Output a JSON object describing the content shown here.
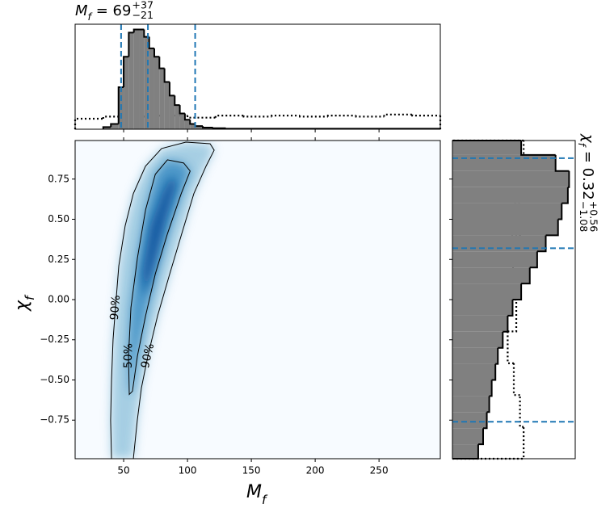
{
  "chart_data": [
    {
      "type": "histogram",
      "title": {
        "symbol": "M",
        "sub": "f",
        "text": " = 69",
        "plus": "+37",
        "minus": "−21"
      },
      "bins": [
        34,
        40,
        46,
        50,
        54,
        58,
        62,
        66,
        70,
        74,
        78,
        82,
        86,
        90,
        94,
        98,
        102,
        106,
        112,
        120,
        130,
        298
      ],
      "values": [
        0.02,
        0.05,
        0.4,
        0.69,
        0.92,
        0.95,
        0.95,
        0.88,
        0.77,
        0.69,
        0.58,
        0.45,
        0.32,
        0.23,
        0.15,
        0.09,
        0.05,
        0.03,
        0.015,
        0.01,
        0.005
      ],
      "color": "#808080",
      "prior_bins": [
        12,
        34,
        56,
        78,
        100,
        122,
        144,
        166,
        188,
        210,
        232,
        254,
        276,
        298
      ],
      "prior_values": [
        0.1,
        0.12,
        0.12,
        0.13,
        0.11,
        0.13,
        0.12,
        0.13,
        0.12,
        0.13,
        0.12,
        0.14,
        0.13
      ],
      "quantiles": [
        48,
        69,
        106
      ],
      "quantile_color": "#1f77b4",
      "xlim": [
        12,
        298
      ],
      "ylim": [
        0,
        1
      ],
      "xticks": [
        50,
        100,
        150,
        200,
        250
      ]
    },
    {
      "type": "contour",
      "xlabel": {
        "symbol": "M",
        "sub": "f"
      },
      "ylabel": {
        "symbol": "χ",
        "sub": "f"
      },
      "xlim": [
        12,
        298
      ],
      "ylim": [
        -0.99,
        0.99
      ],
      "xticks": [
        50,
        100,
        150,
        200,
        250
      ],
      "yticks": [
        {
          "value": -0.75,
          "label": "−0.75"
        },
        {
          "value": -0.5,
          "label": "−0.50"
        },
        {
          "value": -0.25,
          "label": "−0.25"
        },
        {
          "value": 0,
          "label": "0.00"
        },
        0.25,
        {
          "value": 0.5,
          "label": "0.50"
        },
        0.75
      ],
      "contours": [
        {
          "label": "90%",
          "color": "#9ecae1",
          "x": [
            40.5,
            39.8,
            40.5,
            41.7,
            43.6,
            46.2,
            51.2,
            57.6,
            67.1,
            79.7,
            98.7,
            117.7,
            120.9,
            114.5,
            105.0,
            95.5,
            86.1,
            76.6,
            69.0,
            63.9,
            60.7,
            57.6
          ],
          "y": [
            -0.99,
            -0.75,
            -0.5,
            -0.25,
            -0.05,
            0.21,
            0.46,
            0.66,
            0.83,
            0.94,
            0.98,
            0.97,
            0.93,
            0.83,
            0.66,
            0.41,
            0.16,
            -0.1,
            -0.35,
            -0.55,
            -0.75,
            -0.99
          ]
        },
        {
          "label": "50%",
          "color": "#4292c6",
          "x": [
            54.4,
            53.8,
            55.7,
            60.8,
            67.2,
            74.8,
            84.3,
            97.0,
            102.1,
            95.1,
            84.3,
            74.8,
            67.2,
            60.8,
            56.9
          ],
          "y": [
            -0.59,
            -0.35,
            -0.05,
            0.26,
            0.56,
            0.78,
            0.87,
            0.85,
            0.8,
            0.66,
            0.41,
            0.16,
            -0.1,
            -0.35,
            -0.57
          ]
        }
      ],
      "density_core": {
        "color": "#08519c",
        "x": [
          64.6,
          70.9,
          80.4,
          86.7,
          91.8,
          83.5,
          74.0,
          66.5
        ],
        "y": [
          0.16,
          0.46,
          0.66,
          0.76,
          0.73,
          0.51,
          0.21,
          0.01
        ]
      },
      "background": "#f7fbff"
    },
    {
      "type": "histogram",
      "orientation": "horizontal",
      "title": {
        "symbol": "χ",
        "sub": "f",
        "text": " = 0.32",
        "plus": "+0.56",
        "minus": "−1.08"
      },
      "bins": [
        -0.99,
        -0.9,
        -0.8,
        -0.7,
        -0.6,
        -0.5,
        -0.4,
        -0.3,
        -0.2,
        -0.1,
        0,
        0.1,
        0.2,
        0.3,
        0.4,
        0.5,
        0.6,
        0.7,
        0.8,
        0.9,
        0.99
      ],
      "values": [
        0.21,
        0.25,
        0.28,
        0.3,
        0.32,
        0.35,
        0.37,
        0.41,
        0.45,
        0.49,
        0.56,
        0.63,
        0.69,
        0.76,
        0.86,
        0.89,
        0.94,
        0.95,
        0.84,
        0.56
      ],
      "color": "#808080",
      "prior_bins": [
        -0.99,
        -0.792,
        -0.594,
        -0.396,
        -0.198,
        0,
        0.198,
        0.396,
        0.594,
        0.792,
        0.99
      ],
      "prior_values": [
        0.58,
        0.55,
        0.5,
        0.45,
        0.52,
        0.5,
        0.48,
        0.55,
        0.5,
        0.58
      ],
      "quantiles": [
        -0.76,
        0.32,
        0.88
      ],
      "quantile_color": "#1f77b4",
      "ylim": [
        -0.99,
        0.99
      ],
      "xlim": [
        0,
        1
      ],
      "yticks": [
        -0.75,
        -0.5,
        -0.25,
        0,
        0.25,
        0.5,
        0.75
      ]
    }
  ]
}
